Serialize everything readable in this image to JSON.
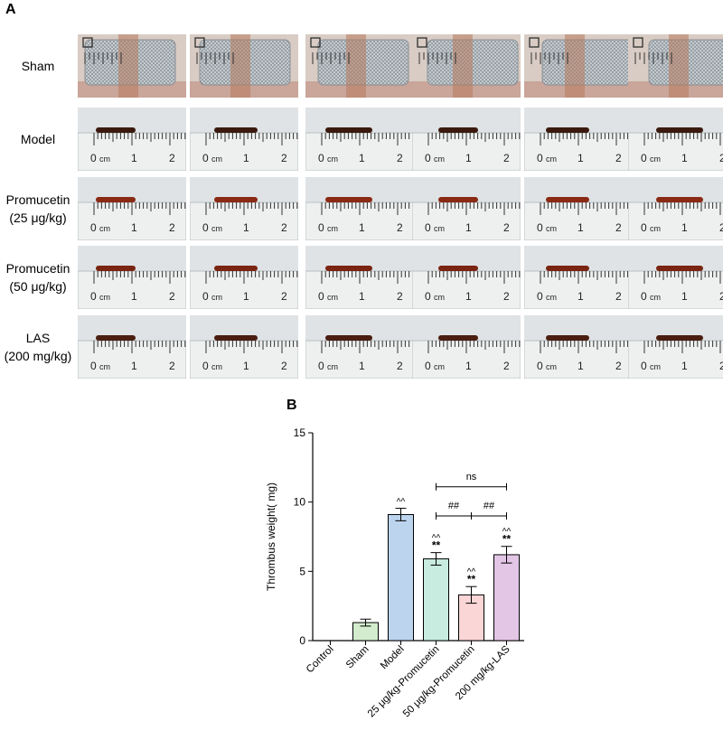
{
  "panel_a": {
    "label": "A",
    "rows": [
      {
        "label_lines": [
          "Sham"
        ],
        "kind": "mesh"
      },
      {
        "label_lines": [
          "Model"
        ],
        "kind": "ruler",
        "thrombus_color": "#3a1a0e"
      },
      {
        "label_lines": [
          "Promucetin",
          "(25 μg/kg)"
        ],
        "kind": "ruler",
        "thrombus_color": "#8a2a14"
      },
      {
        "label_lines": [
          "Promucetin",
          "(50 μg/kg)"
        ],
        "kind": "ruler",
        "thrombus_color": "#7a2412"
      },
      {
        "label_lines": [
          "LAS",
          "(200 mg/kg)"
        ],
        "kind": "ruler",
        "thrombus_color": "#4a1e10"
      }
    ],
    "ruler_text": {
      "cm": "cm",
      "zero": "0",
      "one": "1",
      "two": "2"
    }
  },
  "panel_b": {
    "label": "B"
  },
  "chart_data": {
    "type": "bar",
    "ylabel": "Thrombus weight( mg)",
    "xlabel": "",
    "ylim": [
      0,
      15
    ],
    "yticks": [
      0,
      5,
      10,
      15
    ],
    "categories": [
      "Control",
      "Sham",
      "Model",
      "25 μg/kg-Promucetin",
      "50 μg/kg-Promucetin",
      "200 mg/kg-LAS"
    ],
    "values": [
      0,
      1.3,
      9.1,
      5.9,
      3.3,
      6.2
    ],
    "errors": [
      0,
      0.25,
      0.45,
      0.45,
      0.6,
      0.6
    ],
    "colors": [
      "#ffffff",
      "#d2eccd",
      "#bcd4ee",
      "#c9ece0",
      "#fad6d6",
      "#e3c6e6"
    ],
    "annotations": [
      {
        "bar": 2,
        "lines": [
          "^^"
        ]
      },
      {
        "bar": 3,
        "lines": [
          "^^",
          "**"
        ]
      },
      {
        "bar": 4,
        "lines": [
          "^^",
          "**"
        ]
      },
      {
        "bar": 5,
        "lines": [
          "^^",
          "**"
        ]
      }
    ],
    "comparisons": [
      {
        "from": 3,
        "to": 5,
        "label": "ns",
        "level": 11.1
      },
      {
        "from": 3,
        "to": 4,
        "label": "##",
        "level": 9.0
      },
      {
        "from": 4,
        "to": 5,
        "label": "##",
        "level": 9.0
      }
    ]
  }
}
